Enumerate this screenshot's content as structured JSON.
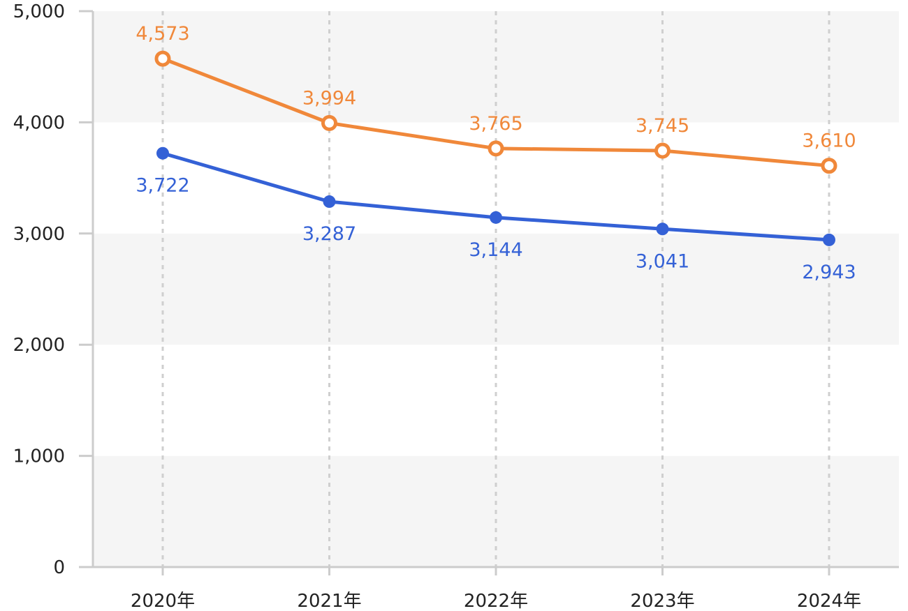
{
  "chart_data": {
    "type": "line",
    "categories": [
      "2020年",
      "2021年",
      "2022年",
      "2023年",
      "2024年"
    ],
    "ylim": [
      0,
      5000
    ],
    "y_ticks": [
      0,
      1000,
      2000,
      3000,
      4000,
      5000
    ],
    "y_tick_labels": [
      "0",
      "1,000",
      "2,000",
      "3,000",
      "4,000",
      "5,000"
    ],
    "grid": "alternating horizontal bands, dashed vertical lines",
    "legend": "none",
    "series": [
      {
        "values": [
          4573,
          3994,
          3765,
          3745,
          3610
        ],
        "labels": [
          "4,573",
          "3,994",
          "3,765",
          "3,745",
          "3,610"
        ],
        "color": "#f0883a",
        "marker": "hollow-circle",
        "label_position": "above"
      },
      {
        "values": [
          3722,
          3287,
          3144,
          3041,
          2943
        ],
        "labels": [
          "3,722",
          "3,287",
          "3,144",
          "3,041",
          "2,943"
        ],
        "color": "#3461d6",
        "marker": "filled-circle",
        "label_position": "below"
      }
    ]
  }
}
